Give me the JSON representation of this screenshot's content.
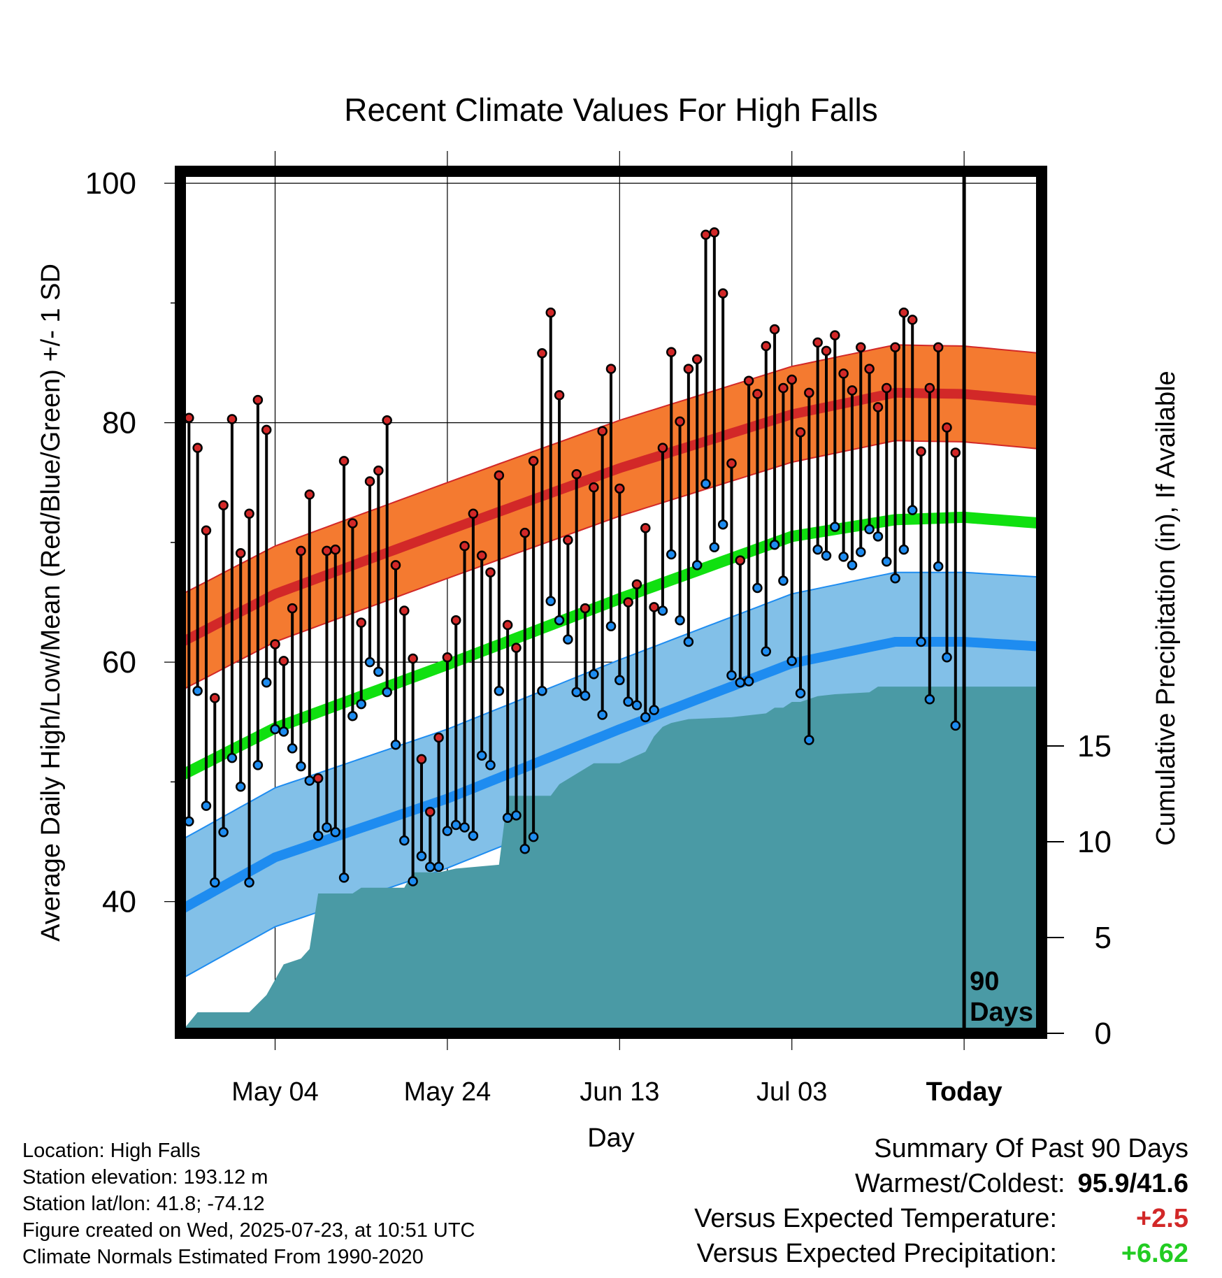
{
  "title": "Recent Climate Values For High Falls",
  "colors": {
    "high_band": "#f47a30",
    "high_edge": "#d22828",
    "mean_line": "#10e010",
    "low_band": "#82c0e8",
    "low_line": "#1e8cf0",
    "precip": "#4a9aa5",
    "high_dot": "#d22828",
    "low_dot": "#1e8cf0",
    "positive_temp": "#d22828",
    "positive_precip": "#22cc22"
  },
  "chart_data": {
    "type": "line",
    "title": "Recent Climate Values For High Falls",
    "xlabel": "Day",
    "ylabel_left": "Average Daily High/Low/Mean (Red/Blue/Green) +/- 1 SD",
    "ylabel_right": "Cumulative Precipitation (in), If Available",
    "x_tick_labels": [
      "May 04",
      "May 24",
      "Jun 13",
      "Jul 03",
      "Today"
    ],
    "x_tick_days": [
      11,
      31,
      51,
      71,
      91
    ],
    "xlim": [
      0,
      100
    ],
    "ylim_left": [
      29,
      101
    ],
    "y_ticks_left": [
      40,
      60,
      80,
      100
    ],
    "ylim_right": [
      0,
      45
    ],
    "y_ticks_right": [
      0,
      5,
      10,
      15
    ],
    "today_marker_label": [
      "90",
      "Days"
    ],
    "normal_high": [
      [
        0,
        61.6
      ],
      [
        11,
        65.7
      ],
      [
        31,
        71.0
      ],
      [
        51,
        76.2
      ],
      [
        71,
        80.7
      ],
      [
        83,
        82.5
      ],
      [
        91,
        82.4
      ],
      [
        100,
        81.8
      ]
    ],
    "normal_high_sd": 4.0,
    "normal_low": [
      [
        0,
        39.3
      ],
      [
        11,
        43.7
      ],
      [
        31,
        48.6
      ],
      [
        51,
        54.4
      ],
      [
        71,
        59.9
      ],
      [
        83,
        61.7
      ],
      [
        91,
        61.7
      ],
      [
        100,
        61.3
      ]
    ],
    "normal_low_sd": 5.8,
    "normal_mean": [
      [
        0,
        50.5
      ],
      [
        11,
        54.5
      ],
      [
        31,
        59.8
      ],
      [
        51,
        65.3
      ],
      [
        71,
        70.5
      ],
      [
        83,
        71.9
      ],
      [
        91,
        72.1
      ],
      [
        100,
        71.6
      ]
    ],
    "daily_high": [
      80.4,
      77.9,
      71.0,
      57.0,
      73.1,
      80.3,
      69.1,
      72.4,
      81.9,
      79.4,
      61.5,
      60.1,
      64.5,
      69.3,
      74.0,
      50.3,
      69.3,
      69.4,
      76.8,
      71.6,
      63.3,
      75.1,
      76.0,
      80.2,
      68.1,
      64.3,
      60.3,
      51.9,
      47.5,
      53.7,
      60.4,
      63.5,
      69.7,
      72.4,
      68.9,
      67.5,
      75.6,
      63.1,
      61.2,
      70.8,
      76.8,
      85.8,
      89.2,
      82.3,
      70.2,
      75.7,
      64.5,
      74.6,
      79.3,
      84.5,
      74.5,
      65.0,
      66.5,
      71.2,
      64.6,
      77.9,
      85.9,
      80.1,
      84.5,
      85.3,
      95.7,
      95.9,
      90.8,
      76.6,
      68.5,
      83.5,
      82.4,
      86.4,
      87.8,
      82.9,
      83.6,
      79.2,
      82.5,
      86.7,
      86.0,
      87.3,
      84.1,
      82.7,
      86.3,
      84.5,
      81.3,
      82.9,
      86.3,
      89.2,
      88.6,
      77.6,
      82.9,
      86.3,
      79.6,
      77.5
    ],
    "daily_low": [
      46.7,
      57.6,
      48.0,
      41.6,
      45.8,
      52.0,
      49.6,
      41.6,
      51.4,
      58.3,
      54.4,
      54.2,
      52.8,
      51.3,
      50.1,
      45.5,
      46.2,
      45.8,
      42.0,
      55.5,
      56.5,
      60.0,
      59.2,
      57.5,
      53.1,
      45.1,
      41.7,
      43.8,
      42.9,
      42.9,
      45.9,
      46.4,
      46.2,
      45.5,
      52.2,
      51.4,
      57.6,
      47.0,
      47.2,
      44.4,
      45.4,
      57.6,
      65.1,
      63.5,
      61.9,
      57.5,
      57.2,
      59.0,
      55.6,
      63.0,
      58.5,
      56.7,
      56.4,
      55.4,
      56.0,
      64.3,
      69.0,
      63.5,
      61.7,
      68.1,
      74.9,
      69.6,
      71.5,
      58.9,
      58.3,
      58.4,
      66.2,
      60.9,
      69.8,
      66.8,
      60.1,
      57.4,
      53.5,
      69.4,
      68.9,
      71.3,
      68.8,
      68.1,
      69.2,
      71.1,
      70.5,
      68.4,
      67.0,
      69.4,
      72.7,
      61.7,
      56.9,
      68.0,
      60.4,
      54.7
    ],
    "cumulative_precip": [
      [
        0,
        0.0
      ],
      [
        2,
        1.1
      ],
      [
        8,
        1.1
      ],
      [
        10,
        2.0
      ],
      [
        12,
        3.6
      ],
      [
        14,
        3.9
      ],
      [
        15,
        4.4
      ],
      [
        16,
        7.3
      ],
      [
        20,
        7.3
      ],
      [
        21,
        7.6
      ],
      [
        26,
        7.6
      ],
      [
        27,
        8.4
      ],
      [
        30,
        8.4
      ],
      [
        32,
        8.6
      ],
      [
        37,
        8.8
      ],
      [
        38,
        12.4
      ],
      [
        43,
        12.4
      ],
      [
        44,
        13.0
      ],
      [
        48,
        14.1
      ],
      [
        51,
        14.1
      ],
      [
        53,
        14.5
      ],
      [
        54,
        14.7
      ],
      [
        55,
        15.5
      ],
      [
        56,
        16.0
      ],
      [
        57,
        16.2
      ],
      [
        59,
        16.4
      ],
      [
        64,
        16.5
      ],
      [
        68,
        16.7
      ],
      [
        69,
        17.0
      ],
      [
        70,
        17.0
      ],
      [
        71,
        17.3
      ],
      [
        72,
        17.3
      ],
      [
        74,
        17.6
      ],
      [
        76,
        17.7
      ],
      [
        80,
        17.8
      ],
      [
        81,
        18.1
      ],
      [
        100,
        18.1
      ]
    ]
  },
  "footer": {
    "location": "Location: High Falls",
    "elevation": "Station elevation: 193.12 m",
    "latlon": "Station lat/lon: 41.8; -74.12",
    "created": "Figure created on Wed, 2025-07-23, at 10:51 UTC",
    "normals": "Climate Normals Estimated From 1990-2020"
  },
  "summary": {
    "heading": "Summary Of Past 90 Days",
    "warmest_label": "Warmest/Coldest:",
    "warmest_value": "95.9/41.6",
    "temp_label": "Versus Expected Temperature:",
    "temp_value": "+2.5",
    "precip_label": "Versus Expected Precipitation:",
    "precip_value": "+6.62"
  }
}
